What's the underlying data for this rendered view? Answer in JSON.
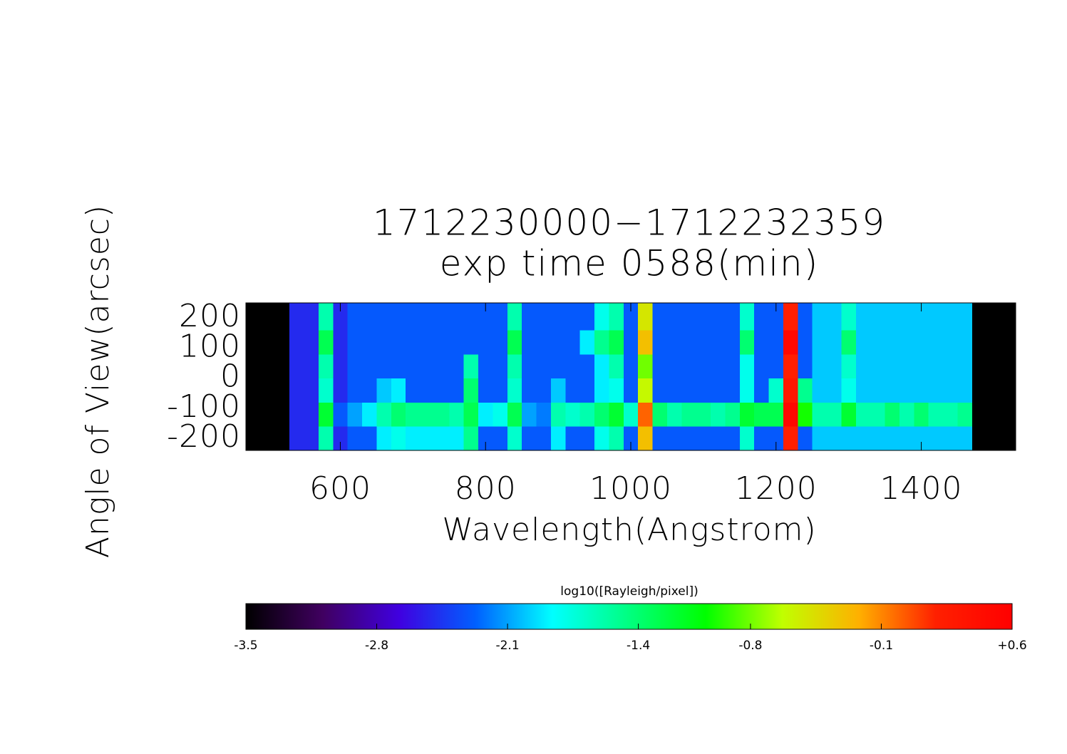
{
  "chart_data": {
    "type": "heatmap",
    "title": "1712230000−1712232359",
    "subtitle": "exp time 0588(min)",
    "x_label": "Wavelength(Angstrom)",
    "y_label": "Angle of View(arcsec)",
    "xlim": [
      470,
      1530
    ],
    "ylim": [
      -240,
      250
    ],
    "xticks": [
      600,
      800,
      1000,
      1200,
      1400
    ],
    "yticks": [
      -200,
      -100,
      0,
      100,
      200
    ],
    "x": [
      470,
      490,
      510,
      530,
      550,
      570,
      590,
      610,
      630,
      650,
      670,
      690,
      710,
      730,
      750,
      770,
      790,
      810,
      830,
      850,
      870,
      890,
      910,
      930,
      950,
      970,
      990,
      1010,
      1030,
      1050,
      1070,
      1090,
      1110,
      1130,
      1150,
      1170,
      1190,
      1210,
      1230,
      1250,
      1270,
      1290,
      1310,
      1330,
      1350,
      1370,
      1390,
      1410,
      1430,
      1450,
      1470,
      1490,
      1510,
      1530
    ],
    "y": [
      -240,
      -160,
      -80,
      0,
      80,
      160,
      250
    ],
    "z": [
      [
        -3.5,
        -3.5,
        -3.5,
        -2.5,
        -2.5,
        -1.6,
        -2.5,
        -2.3,
        -2.3,
        -1.9,
        -1.8,
        -1.9,
        -1.9,
        -1.9,
        -1.9,
        -1.5,
        -2.3,
        -2.3,
        -1.7,
        -2.3,
        -2.3,
        -1.9,
        -2.3,
        -2.3,
        -1.8,
        -1.6,
        -2.3,
        -0.3,
        -2.3,
        -2.3,
        -2.3,
        -2.3,
        -2.3,
        -2.3,
        -1.7,
        -2.3,
        -2.3,
        0.2,
        -2.3,
        -2.0,
        -2.0,
        -2.0,
        -2.0,
        -2.0,
        -2.0,
        -2.0,
        -2.0,
        -2.0,
        -2.0,
        -2.0,
        -3.5,
        -3.5,
        -3.5
      ],
      [
        -3.5,
        -3.5,
        -3.5,
        -2.5,
        -2.5,
        -1.2,
        -2.3,
        -2.1,
        -1.9,
        -1.6,
        -1.4,
        -1.5,
        -1.5,
        -1.5,
        -1.6,
        -1.3,
        -1.9,
        -1.8,
        -1.3,
        -2.1,
        -2.2,
        -1.6,
        -1.7,
        -1.6,
        -1.4,
        -1.2,
        -1.7,
        0.0,
        -1.4,
        -1.6,
        -1.5,
        -1.5,
        -1.6,
        -1.5,
        -1.2,
        -1.3,
        -1.3,
        0.5,
        -1.0,
        -1.6,
        -1.6,
        -1.2,
        -1.6,
        -1.6,
        -1.4,
        -1.6,
        -1.4,
        -1.6,
        -1.6,
        -1.5,
        -3.5,
        -3.5,
        -3.5
      ],
      [
        -3.5,
        -3.5,
        -3.5,
        -2.5,
        -2.5,
        -1.7,
        -2.5,
        -2.3,
        -2.3,
        -2.0,
        -1.9,
        -2.3,
        -2.3,
        -2.3,
        -2.3,
        -1.4,
        -2.3,
        -2.3,
        -1.7,
        -2.3,
        -2.3,
        -2.0,
        -2.3,
        -2.3,
        -1.9,
        -1.8,
        -2.3,
        -0.6,
        -2.3,
        -2.3,
        -2.3,
        -2.3,
        -2.3,
        -2.3,
        -1.8,
        -2.3,
        -1.7,
        0.3,
        -1.5,
        -2.0,
        -2.0,
        -1.8,
        -2.0,
        -2.0,
        -2.0,
        -2.0,
        -2.0,
        -2.0,
        -2.0,
        -2.0,
        -3.5,
        -3.5,
        -3.5
      ],
      [
        -3.5,
        -3.5,
        -3.5,
        -2.5,
        -2.5,
        -1.6,
        -2.5,
        -2.3,
        -2.3,
        -2.3,
        -2.3,
        -2.3,
        -2.3,
        -2.3,
        -2.3,
        -1.6,
        -2.3,
        -2.3,
        -1.6,
        -2.3,
        -2.3,
        -2.3,
        -2.3,
        -2.3,
        -1.9,
        -1.6,
        -2.3,
        -0.8,
        -2.3,
        -2.3,
        -2.3,
        -2.3,
        -2.3,
        -2.3,
        -1.8,
        -2.3,
        -2.3,
        0.2,
        -2.3,
        -2.0,
        -2.0,
        -1.7,
        -2.0,
        -2.0,
        -2.0,
        -2.0,
        -2.0,
        -2.0,
        -2.0,
        -2.0,
        -3.5,
        -3.5,
        -3.5
      ],
      [
        -3.5,
        -3.5,
        -3.5,
        -2.5,
        -2.5,
        -1.3,
        -2.5,
        -2.3,
        -2.3,
        -2.3,
        -2.3,
        -2.3,
        -2.3,
        -2.3,
        -2.3,
        -2.3,
        -2.3,
        -2.3,
        -1.3,
        -2.3,
        -2.3,
        -2.3,
        -2.3,
        -1.9,
        -1.5,
        -1.3,
        -2.3,
        -0.3,
        -2.3,
        -2.3,
        -2.3,
        -2.3,
        -2.3,
        -2.3,
        -1.4,
        -2.3,
        -2.3,
        0.5,
        -2.3,
        -2.0,
        -2.0,
        -1.4,
        -2.0,
        -2.0,
        -2.0,
        -2.0,
        -2.0,
        -2.0,
        -2.0,
        -2.0,
        -3.5,
        -3.5,
        -3.5
      ],
      [
        -3.5,
        -3.5,
        -3.5,
        -2.5,
        -2.5,
        -1.6,
        -2.5,
        -2.3,
        -2.3,
        -2.3,
        -2.3,
        -2.3,
        -2.3,
        -2.3,
        -2.3,
        -2.3,
        -2.3,
        -2.3,
        -1.6,
        -2.3,
        -2.3,
        -2.3,
        -2.3,
        -2.3,
        -1.8,
        -1.6,
        -2.3,
        -0.5,
        -2.3,
        -2.3,
        -2.3,
        -2.3,
        -2.3,
        -2.3,
        -1.7,
        -2.3,
        -2.3,
        0.2,
        -2.3,
        -2.0,
        -2.0,
        -1.7,
        -2.0,
        -2.0,
        -2.0,
        -2.0,
        -2.0,
        -2.0,
        -2.0,
        -2.0,
        -3.5,
        -3.5,
        -3.5
      ]
    ],
    "clim": [
      -3.5,
      0.6
    ],
    "colormap": [
      "#000000",
      "#400060",
      "#4000e0",
      "#0060ff",
      "#00ffff",
      "#00ff80",
      "#00ff00",
      "#c0ff00",
      "#ffb000",
      "#ff2000",
      "#ff0000"
    ],
    "colorbar": {
      "label": "log10([Rayleigh/pixel])",
      "ticks": [
        -3.5,
        -2.8,
        -2.1,
        -1.4,
        -0.8,
        -0.1,
        {
          "value": 0.6,
          "label": "+0.6"
        }
      ]
    }
  }
}
